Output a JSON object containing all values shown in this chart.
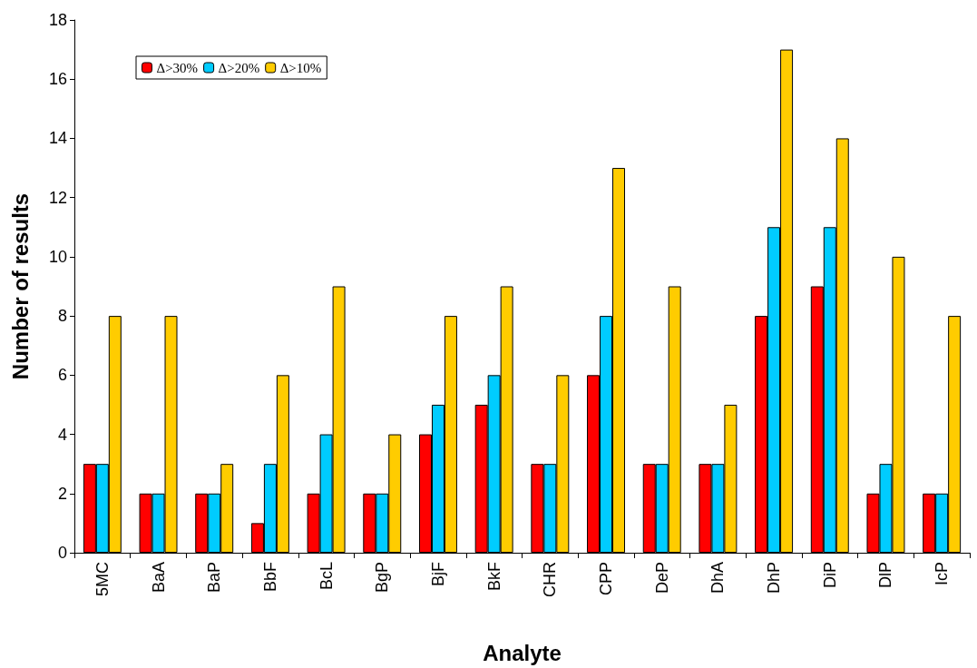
{
  "chart_data": {
    "type": "bar",
    "xlabel": "Analyte",
    "ylabel": "Number of results",
    "categories": [
      "5MC",
      "BaA",
      "BaP",
      "BbF",
      "BcL",
      "BgP",
      "BjF",
      "BkF",
      "CHR",
      "CPP",
      "DeP",
      "DhA",
      "DhP",
      "DiP",
      "DlP",
      "IcP"
    ],
    "series": [
      {
        "name": "Δ>30%",
        "color": "#ff0000",
        "values": [
          3,
          2,
          2,
          1,
          2,
          2,
          4,
          5,
          3,
          6,
          3,
          3,
          8,
          9,
          2,
          2
        ]
      },
      {
        "name": "Δ>20%",
        "color": "#00ccff",
        "values": [
          3,
          2,
          2,
          3,
          4,
          2,
          5,
          6,
          3,
          8,
          3,
          3,
          11,
          11,
          3,
          2
        ]
      },
      {
        "name": "Δ>10%",
        "color": "#ffcc00",
        "values": [
          8,
          8,
          3,
          6,
          9,
          4,
          8,
          9,
          6,
          13,
          9,
          5,
          17,
          14,
          10,
          8
        ]
      }
    ],
    "ylim": [
      0,
      18
    ],
    "yticks": [
      0,
      2,
      4,
      6,
      8,
      10,
      12,
      14,
      16,
      18
    ],
    "grid": false,
    "legend": "top left"
  }
}
